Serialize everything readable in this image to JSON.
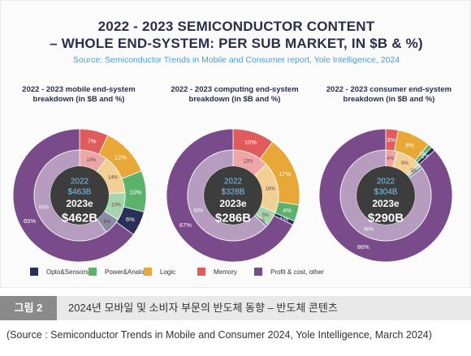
{
  "header": {
    "title_line1": "2022 - 2023 SEMICONDUCTOR CONTENT",
    "title_line2": "– WHOLE END-SYSTEM: PER SUB MARKET, IN $B & %)",
    "subtitle": "Source: Semiconductor Trends in Mobile and Consumer report, Yole Intelligence, 2024"
  },
  "colors": {
    "opto": "#28305a",
    "power": "#5cb26a",
    "logic": "#e8a838",
    "memory": "#e05b5b",
    "profit": "#7a4b8a",
    "center": "#3d3d3d"
  },
  "chart_data": [
    {
      "type": "pie",
      "title": "2022 - 2023 mobile end-system breakdown (in $B and %)",
      "center": {
        "y2022": "2022",
        "v2022": "$463B",
        "y2023": "2023e",
        "v2023": "$462B"
      },
      "outer_2023e": [
        {
          "category": "Memory",
          "value": 7,
          "label": "7%"
        },
        {
          "category": "Logic",
          "value": 12,
          "label": "12%"
        },
        {
          "category": "Power&Analog",
          "value": 10,
          "label": "10%"
        },
        {
          "category": "Opto&Sensors",
          "value": 6,
          "label": "6%"
        },
        {
          "category": "Profit & cost, other",
          "value": 65,
          "label": "65%"
        }
      ],
      "inner_2022": [
        {
          "category": "Memory",
          "value": 10,
          "label": "10%"
        },
        {
          "category": "Logic",
          "value": 14,
          "label": "14%"
        },
        {
          "category": "Power&Analog",
          "value": 10,
          "label": "10%"
        },
        {
          "category": "Opto&Sensors",
          "value": 6,
          "label": "6%"
        },
        {
          "category": "Profit & cost, other",
          "value": 60,
          "label": "60%"
        }
      ]
    },
    {
      "type": "pie",
      "title": "2022 - 2023 computing end-system breakdown (in $B and %)",
      "center": {
        "y2022": "2022",
        "v2022": "$328B",
        "y2023": "2023e",
        "v2023": "$286B"
      },
      "outer_2023e": [
        {
          "category": "Memory",
          "value": 10,
          "label": "10%"
        },
        {
          "category": "Logic",
          "value": 17,
          "label": "17%"
        },
        {
          "category": "Power&Analog",
          "value": 4,
          "label": "4%"
        },
        {
          "category": "Opto&Sensors",
          "value": 1,
          "label": "1%"
        },
        {
          "category": "Profit & cost, other",
          "value": 67,
          "label": "67%"
        }
      ],
      "inner_2022": [
        {
          "category": "Memory",
          "value": 13,
          "label": "13%"
        },
        {
          "category": "Logic",
          "value": 18,
          "label": "18%"
        },
        {
          "category": "Power&Analog",
          "value": 5,
          "label": "5%"
        },
        {
          "category": "Opto&Sensors",
          "value": 1,
          "label": "1%"
        },
        {
          "category": "Profit & cost, other",
          "value": 63,
          "label": "63%"
        }
      ]
    },
    {
      "type": "pie",
      "title": "2022 - 2023 consumer end-system breakdown (in $B and %)",
      "center": {
        "y2022": "2022",
        "v2022": "$304B",
        "y2023": "2023e",
        "v2023": "$290B"
      },
      "outer_2023e": [
        {
          "category": "Memory",
          "value": 3,
          "label": "3%"
        },
        {
          "category": "Logic",
          "value": 8,
          "label": "8%"
        },
        {
          "category": "Power&Analog",
          "value": 1,
          "label": "1%"
        },
        {
          "category": "Opto&Sensors",
          "value": 1,
          "label": "1%"
        },
        {
          "category": "Profit & cost, other",
          "value": 86,
          "label": "86%"
        }
      ],
      "inner_2022": [
        {
          "category": "Memory",
          "value": 4,
          "label": "4%"
        },
        {
          "category": "Logic",
          "value": 9,
          "label": "9%"
        },
        {
          "category": "Power&Analog",
          "value": 1,
          "label": "1%"
        },
        {
          "category": "Opto&Sensors",
          "value": 1,
          "label": "1%"
        },
        {
          "category": "Profit & cost, other",
          "value": 86,
          "label": "86%"
        }
      ]
    }
  ],
  "legend": [
    {
      "label": "Opto&Sensors",
      "color": "#28305a"
    },
    {
      "label": "Power&Analog",
      "color": "#5cb26a"
    },
    {
      "label": "Logic",
      "color": "#e8a838"
    },
    {
      "label": "Memory",
      "color": "#e05b5b"
    },
    {
      "label": "Profit & cost, other",
      "color": "#7a4b8a"
    }
  ],
  "caption": {
    "label": "그림 2",
    "text": "2024년 모바일 및 소비자 부문의 반도체 동향 – 반도체 콘텐츠",
    "source": "(Source : Semiconductor Trends in Mobile and Consumer 2024, Yole Intelligence, March 2024)"
  }
}
